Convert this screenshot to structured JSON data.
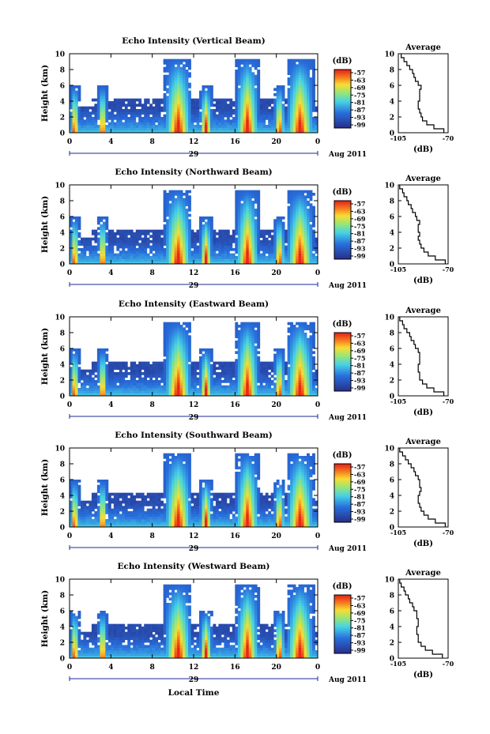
{
  "figure": {
    "xlabel": "Local Time",
    "month_label": "Aug 2011",
    "date_label": "29",
    "colorbar_unit": "(dB)",
    "colorbar_ticks": [
      "-57",
      "-63",
      "-69",
      "-75",
      "-81",
      "-87",
      "-93",
      "-99"
    ],
    "avg_title": "Average",
    "avg_xlabel": "(dB)",
    "avg_xticks": [
      "-105",
      "-70"
    ],
    "colors": {
      "line": "#000000",
      "low": "#2b3390",
      "high": "#e8321c"
    }
  },
  "chart_data": [
    {
      "type": "heatmap",
      "title": "Echo Intensity (Vertical Beam)",
      "ylabel": "Height (km)",
      "xticks": [
        "0",
        "4",
        "8",
        "12",
        "16",
        "20",
        "0"
      ],
      "yticks": [
        "0",
        "2",
        "4",
        "6",
        "8",
        "10"
      ],
      "xlim": [
        0,
        24
      ],
      "ylim": [
        0,
        10
      ],
      "colorbar_range_db": [
        -99,
        -57
      ],
      "average_profile": {
        "xlim": [
          -105,
          -70
        ],
        "height_km": [
          0,
          0.5,
          1,
          1.5,
          2,
          2.5,
          3,
          3.5,
          4,
          4.5,
          5,
          5.5,
          6,
          6.5,
          7,
          7.5,
          8,
          8.5,
          9,
          9.5
        ],
        "echo_db": [
          -73,
          -80,
          -85,
          -88,
          -89,
          -90,
          -91,
          -91,
          -90,
          -90,
          -90,
          -89,
          -91,
          -93,
          -94,
          -95,
          -97,
          -99,
          -101,
          -103
        ]
      }
    },
    {
      "type": "heatmap",
      "title": "Echo Intensity (Northward Beam)",
      "ylabel": "Height (km)",
      "xticks": [
        "0",
        "4",
        "8",
        "12",
        "16",
        "20",
        "0"
      ],
      "yticks": [
        "0",
        "2",
        "4",
        "6",
        "8",
        "10"
      ],
      "xlim": [
        0,
        24
      ],
      "ylim": [
        0,
        10
      ],
      "colorbar_range_db": [
        -99,
        -57
      ],
      "average_profile": {
        "xlim": [
          -105,
          -70
        ],
        "height_km": [
          0,
          0.5,
          1,
          1.5,
          2,
          2.5,
          3,
          3.5,
          4,
          4.5,
          5,
          5.5,
          6,
          6.5,
          7,
          7.5,
          8,
          8.5,
          9,
          9.5
        ],
        "echo_db": [
          -72,
          -79,
          -84,
          -87,
          -89,
          -90,
          -91,
          -90,
          -91,
          -91,
          -90,
          -92,
          -93,
          -95,
          -96,
          -98,
          -99,
          -101,
          -102,
          -104
        ]
      }
    },
    {
      "type": "heatmap",
      "title": "Echo Intensity (Eastward Beam)",
      "ylabel": "Height (km)",
      "xticks": [
        "0",
        "4",
        "8",
        "12",
        "16",
        "20",
        "0"
      ],
      "yticks": [
        "0",
        "2",
        "4",
        "6",
        "8",
        "10"
      ],
      "xlim": [
        0,
        24
      ],
      "ylim": [
        0,
        10
      ],
      "colorbar_range_db": [
        -99,
        -57
      ],
      "average_profile": {
        "xlim": [
          -105,
          -70
        ],
        "height_km": [
          0,
          0.5,
          1,
          1.5,
          2,
          2.5,
          3,
          3.5,
          4,
          4.5,
          5,
          5.5,
          6,
          6.5,
          7,
          7.5,
          8,
          8.5,
          9,
          9.5
        ],
        "echo_db": [
          -73,
          -80,
          -85,
          -88,
          -90,
          -90,
          -91,
          -91,
          -90,
          -90,
          -90,
          -91,
          -93,
          -94,
          -96,
          -97,
          -99,
          -101,
          -102,
          -104
        ]
      }
    },
    {
      "type": "heatmap",
      "title": "Echo Intensity (Southward Beam)",
      "ylabel": "Height (km)",
      "xticks": [
        "0",
        "4",
        "8",
        "12",
        "16",
        "20",
        "0"
      ],
      "yticks": [
        "0",
        "2",
        "4",
        "6",
        "8",
        "10"
      ],
      "xlim": [
        0,
        24
      ],
      "ylim": [
        0,
        10
      ],
      "colorbar_range_db": [
        -99,
        -57
      ],
      "average_profile": {
        "xlim": [
          -105,
          -70
        ],
        "height_km": [
          0,
          0.5,
          1,
          1.5,
          2,
          2.5,
          3,
          3.5,
          4,
          4.5,
          5,
          5.5,
          6,
          6.5,
          7,
          7.5,
          8,
          8.5,
          9,
          9.5
        ],
        "echo_db": [
          -72,
          -79,
          -84,
          -87,
          -89,
          -90,
          -91,
          -91,
          -90,
          -89,
          -90,
          -90,
          -91,
          -93,
          -94,
          -96,
          -98,
          -100,
          -102,
          -104
        ]
      }
    },
    {
      "type": "heatmap",
      "title": "Echo Intensity (Westward Beam)",
      "ylabel": "Height (km)",
      "xticks": [
        "0",
        "4",
        "8",
        "12",
        "16",
        "20",
        "0"
      ],
      "yticks": [
        "0",
        "2",
        "4",
        "6",
        "8",
        "10"
      ],
      "xlim": [
        0,
        24
      ],
      "ylim": [
        0,
        10
      ],
      "colorbar_range_db": [
        -99,
        -57
      ],
      "average_profile": {
        "xlim": [
          -105,
          -70
        ],
        "height_km": [
          0,
          0.5,
          1,
          1.5,
          2,
          2.5,
          3,
          3.5,
          4,
          4.5,
          5,
          5.5,
          6,
          6.5,
          7,
          7.5,
          8,
          8.5,
          9,
          9.5
        ],
        "echo_db": [
          -74,
          -81,
          -86,
          -89,
          -91,
          -91,
          -92,
          -92,
          -91,
          -91,
          -92,
          -92,
          -94,
          -95,
          -97,
          -98,
          -100,
          -101,
          -103,
          -104
        ]
      }
    }
  ]
}
